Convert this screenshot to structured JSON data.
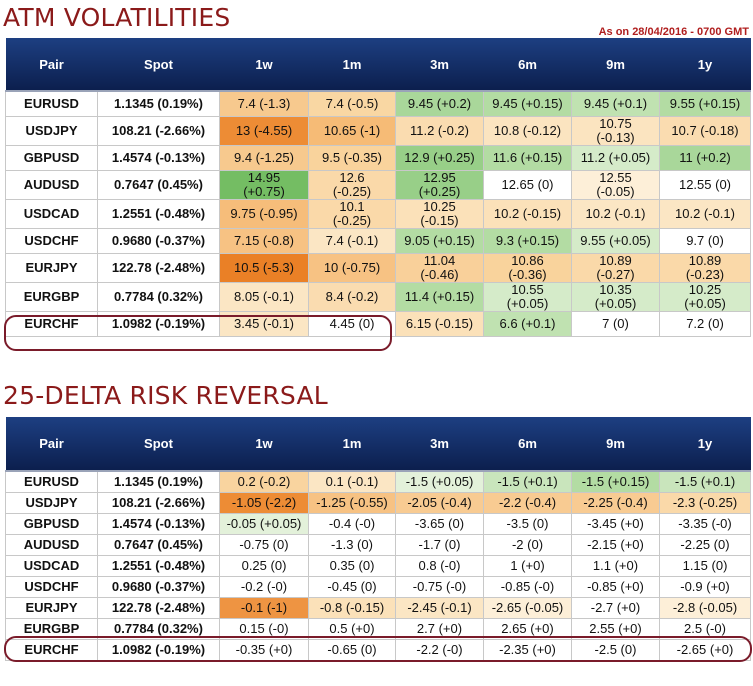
{
  "section1": {
    "title": "ATM VOLATILITIES",
    "as_of": "As on 28/04/2016 - 0700 GMT",
    "headers": [
      "Pair",
      "Spot",
      "1w",
      "1m",
      "3m",
      "6m",
      "9m",
      "1y"
    ],
    "rows": [
      {
        "pair": "EURUSD",
        "spot": "1.1345 (0.19%)",
        "cells": [
          {
            "t": "7.4 (-1.3)",
            "c": "#f7c98e"
          },
          {
            "t": "7.4 (-0.5)",
            "c": "#f9d7a3"
          },
          {
            "t": "9.45 (+0.2)",
            "c": "#a9d79a"
          },
          {
            "t": "9.45 (+0.15)",
            "c": "#b3dca3"
          },
          {
            "t": "9.45 (+0.1)",
            "c": "#c0e2b1"
          },
          {
            "t": "9.55 (+0.15)",
            "c": "#b3dca3"
          }
        ]
      },
      {
        "pair": "USDJPY",
        "spot": "108.21 (-2.66%)",
        "cells": [
          {
            "t": "13 (-4.55)",
            "c": "#ed8c35"
          },
          {
            "t": "10.65 (-1)",
            "c": "#f6bb76"
          },
          {
            "t": "11.2 (-0.2)",
            "c": "#fadcb0"
          },
          {
            "t": "10.8 (-0.12)",
            "c": "#fbe4c0"
          },
          {
            "t": "10.75\n(-0.13)",
            "c": "#fbe4c0"
          },
          {
            "t": "10.7 (-0.18)",
            "c": "#fadcb0"
          }
        ]
      },
      {
        "pair": "GBPUSD",
        "spot": "1.4574 (-0.13%)",
        "cells": [
          {
            "t": "9.4 (-1.25)",
            "c": "#f7c98e"
          },
          {
            "t": "9.5 (-0.35)",
            "c": "#f9d39c"
          },
          {
            "t": "12.9 (+0.25)",
            "c": "#98cf88"
          },
          {
            "t": "11.6 (+0.15)",
            "c": "#b3dca3"
          },
          {
            "t": "11.2 (+0.05)",
            "c": "#d5ebc9"
          },
          {
            "t": "11 (+0.2)",
            "c": "#a9d79a"
          }
        ]
      },
      {
        "pair": "AUDUSD",
        "spot": "0.7647 (0.45%)",
        "cells": [
          {
            "t": "14.95\n(+0.75)",
            "c": "#74bd63"
          },
          {
            "t": "12.6\n(-0.25)",
            "c": "#fad9a9"
          },
          {
            "t": "12.95\n(+0.25)",
            "c": "#98cf88"
          },
          {
            "t": "12.65 (0)",
            "c": "#ffffff"
          },
          {
            "t": "12.55\n(-0.05)",
            "c": "#fdefd8"
          },
          {
            "t": "12.55 (0)",
            "c": "#ffffff"
          }
        ]
      },
      {
        "pair": "USDCAD",
        "spot": "1.2551 (-0.48%)",
        "cells": [
          {
            "t": "9.75 (-0.95)",
            "c": "#f6bd7a"
          },
          {
            "t": "10.1\n(-0.25)",
            "c": "#fad9a9"
          },
          {
            "t": "10.25\n(-0.15)",
            "c": "#fbe1b9"
          },
          {
            "t": "10.2 (-0.15)",
            "c": "#fbe1b9"
          },
          {
            "t": "10.2 (-0.1)",
            "c": "#fbe6c4"
          },
          {
            "t": "10.2 (-0.1)",
            "c": "#fbe6c4"
          }
        ]
      },
      {
        "pair": "USDCHF",
        "spot": "0.9680 (-0.37%)",
        "cells": [
          {
            "t": "7.15 (-0.8)",
            "c": "#f7c283"
          },
          {
            "t": "7.4 (-0.1)",
            "c": "#fbe6c4"
          },
          {
            "t": "9.05 (+0.15)",
            "c": "#b3dca3"
          },
          {
            "t": "9.3 (+0.15)",
            "c": "#b3dca3"
          },
          {
            "t": "9.55 (+0.05)",
            "c": "#d5ebc9"
          },
          {
            "t": "9.7 (0)",
            "c": "#ffffff"
          }
        ]
      },
      {
        "pair": "EURJPY",
        "spot": "122.78 (-2.48%)",
        "cells": [
          {
            "t": "10.5 (-5.3)",
            "c": "#ea8026"
          },
          {
            "t": "10 (-0.75)",
            "c": "#f7c283"
          },
          {
            "t": "11.04\n(-0.46)",
            "c": "#f9d09a"
          },
          {
            "t": "10.86\n(-0.36)",
            "c": "#f9d39c"
          },
          {
            "t": "10.89\n(-0.27)",
            "c": "#fad9a9"
          },
          {
            "t": "10.89\n(-0.23)",
            "c": "#fad9a9"
          }
        ]
      },
      {
        "pair": "EURGBP",
        "spot": "0.7784 (0.32%)",
        "cells": [
          {
            "t": "8.05 (-0.1)",
            "c": "#fbe6c4"
          },
          {
            "t": "8.4 (-0.2)",
            "c": "#fadcb0"
          },
          {
            "t": "11.4 (+0.15)",
            "c": "#b3dca3"
          },
          {
            "t": "10.55\n(+0.05)",
            "c": "#d5ebc9"
          },
          {
            "t": "10.35\n(+0.05)",
            "c": "#d5ebc9"
          },
          {
            "t": "10.25\n(+0.05)",
            "c": "#d5ebc9"
          }
        ]
      },
      {
        "pair": "EURCHF",
        "spot": "1.0982 (-0.19%)",
        "cells": [
          {
            "t": "3.45 (-0.1)",
            "c": "#fbe6c4"
          },
          {
            "t": "4.45 (0)",
            "c": "#ffffff"
          },
          {
            "t": "6.15 (-0.15)",
            "c": "#fbe1b9"
          },
          {
            "t": "6.6 (+0.1)",
            "c": "#c0e2b1"
          },
          {
            "t": "7 (0)",
            "c": "#ffffff"
          },
          {
            "t": "7.2 (0)",
            "c": "#ffffff"
          }
        ]
      }
    ]
  },
  "section2": {
    "title": "25-DELTA RISK REVERSAL",
    "headers": [
      "Pair",
      "Spot",
      "1w",
      "1m",
      "3m",
      "6m",
      "9m",
      "1y"
    ],
    "rows": [
      {
        "pair": "EURUSD",
        "spot": "1.1345 (0.19%)",
        "cells": [
          {
            "t": "0.2 (-0.2)",
            "c": "#f9d49f"
          },
          {
            "t": "0.1 (-0.1)",
            "c": "#fbe6c4"
          },
          {
            "t": "-1.5 (+0.05)",
            "c": "#e3f1da"
          },
          {
            "t": "-1.5 (+0.1)",
            "c": "#c9e5bc"
          },
          {
            "t": "-1.5 (+0.15)",
            "c": "#b3dca3"
          },
          {
            "t": "-1.5 (+0.1)",
            "c": "#c9e5bc"
          }
        ]
      },
      {
        "pair": "USDJPY",
        "spot": "108.21 (-2.66%)",
        "cells": [
          {
            "t": "-1.05 (-2.2)",
            "c": "#ed8c35"
          },
          {
            "t": "-1.25 (-0.55)",
            "c": "#f7c283"
          },
          {
            "t": "-2.05 (-0.4)",
            "c": "#f8cb92"
          },
          {
            "t": "-2.2 (-0.4)",
            "c": "#f8cb92"
          },
          {
            "t": "-2.25 (-0.4)",
            "c": "#f8cb92"
          },
          {
            "t": "-2.3 (-0.25)",
            "c": "#fad9a9"
          }
        ]
      },
      {
        "pair": "GBPUSD",
        "spot": "1.4574 (-0.13%)",
        "cells": [
          {
            "t": "-0.05 (+0.05)",
            "c": "#e3f1da"
          },
          {
            "t": "-0.4 (-0)",
            "c": "#ffffff"
          },
          {
            "t": "-3.65 (0)",
            "c": "#ffffff"
          },
          {
            "t": "-3.5 (0)",
            "c": "#ffffff"
          },
          {
            "t": "-3.45 (+0)",
            "c": "#ffffff"
          },
          {
            "t": "-3.35 (-0)",
            "c": "#ffffff"
          }
        ]
      },
      {
        "pair": "AUDUSD",
        "spot": "0.7647 (0.45%)",
        "cells": [
          {
            "t": "-0.75 (0)",
            "c": "#ffffff"
          },
          {
            "t": "-1.3 (0)",
            "c": "#ffffff"
          },
          {
            "t": "-1.7 (0)",
            "c": "#ffffff"
          },
          {
            "t": "-2 (0)",
            "c": "#ffffff"
          },
          {
            "t": "-2.15 (+0)",
            "c": "#ffffff"
          },
          {
            "t": "-2.25 (0)",
            "c": "#ffffff"
          }
        ]
      },
      {
        "pair": "USDCAD",
        "spot": "1.2551 (-0.48%)",
        "cells": [
          {
            "t": "0.25 (0)",
            "c": "#ffffff"
          },
          {
            "t": "0.35 (0)",
            "c": "#ffffff"
          },
          {
            "t": "0.8 (-0)",
            "c": "#ffffff"
          },
          {
            "t": "1 (+0)",
            "c": "#ffffff"
          },
          {
            "t": "1.1 (+0)",
            "c": "#ffffff"
          },
          {
            "t": "1.15 (0)",
            "c": "#ffffff"
          }
        ]
      },
      {
        "pair": "USDCHF",
        "spot": "0.9680 (-0.37%)",
        "cells": [
          {
            "t": "-0.2 (-0)",
            "c": "#ffffff"
          },
          {
            "t": "-0.45 (0)",
            "c": "#ffffff"
          },
          {
            "t": "-0.75 (-0)",
            "c": "#ffffff"
          },
          {
            "t": "-0.85 (-0)",
            "c": "#ffffff"
          },
          {
            "t": "-0.85 (+0)",
            "c": "#ffffff"
          },
          {
            "t": "-0.9 (+0)",
            "c": "#ffffff"
          }
        ]
      },
      {
        "pair": "EURJPY",
        "spot": "122.78 (-2.48%)",
        "cells": [
          {
            "t": "-0.1 (-1)",
            "c": "#ee9442"
          },
          {
            "t": "-0.8 (-0.15)",
            "c": "#fbe1b9"
          },
          {
            "t": "-2.45 (-0.1)",
            "c": "#fbe6c4"
          },
          {
            "t": "-2.65 (-0.05)",
            "c": "#fdefd8"
          },
          {
            "t": "-2.7 (+0)",
            "c": "#ffffff"
          },
          {
            "t": "-2.8 (-0.05)",
            "c": "#fdefd8"
          }
        ]
      },
      {
        "pair": "EURGBP",
        "spot": "0.7784 (0.32%)",
        "cells": [
          {
            "t": "0.15 (-0)",
            "c": "#ffffff"
          },
          {
            "t": "0.5 (+0)",
            "c": "#ffffff"
          },
          {
            "t": "2.7 (+0)",
            "c": "#ffffff"
          },
          {
            "t": "2.65 (+0)",
            "c": "#ffffff"
          },
          {
            "t": "2.55 (+0)",
            "c": "#ffffff"
          },
          {
            "t": "2.5 (-0)",
            "c": "#ffffff"
          }
        ]
      },
      {
        "pair": "EURCHF",
        "spot": "1.0982 (-0.19%)",
        "cells": [
          {
            "t": "-0.35 (+0)",
            "c": "#ffffff"
          },
          {
            "t": "-0.65 (0)",
            "c": "#ffffff"
          },
          {
            "t": "-2.2 (-0)",
            "c": "#ffffff"
          },
          {
            "t": "-2.35 (+0)",
            "c": "#ffffff"
          },
          {
            "t": "-2.5 (0)",
            "c": "#ffffff"
          },
          {
            "t": "-2.65 (+0)",
            "c": "#ffffff"
          }
        ]
      }
    ]
  },
  "colors": {
    "title": "#8b1a1a",
    "header_bg": "#0c1f4e",
    "highlight_border": "#7a1b2a",
    "pair_text": "#1b2a5a"
  }
}
